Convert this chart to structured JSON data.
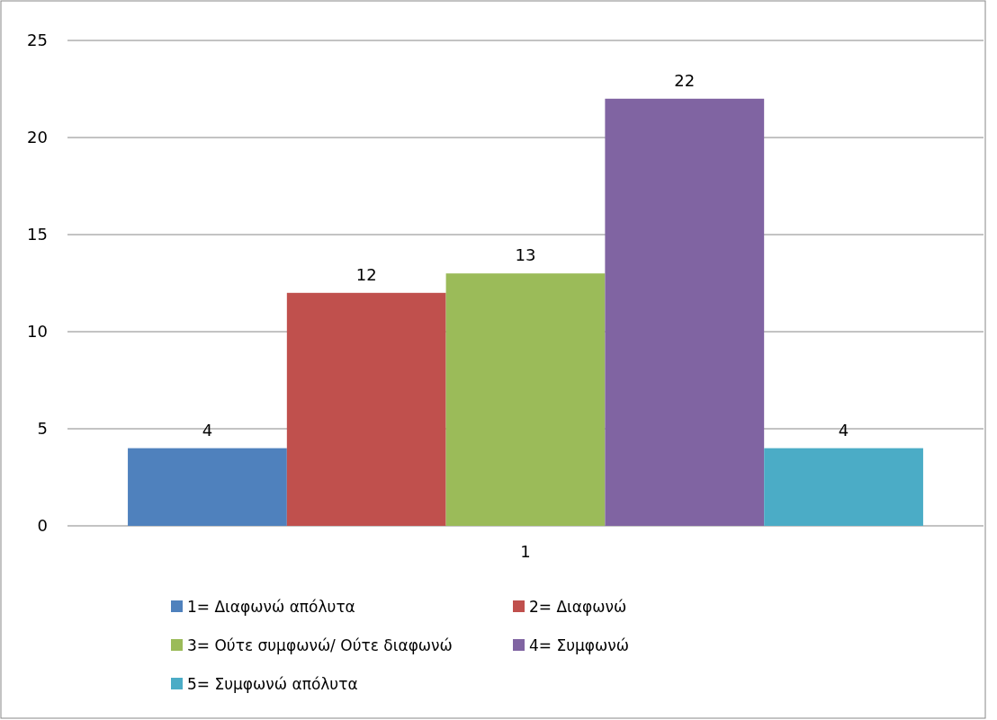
{
  "chart_data": {
    "type": "bar",
    "categories": [
      "1"
    ],
    "series": [
      {
        "name": "1= Διαφωνώ απόλυτα",
        "color": "#4f81bd",
        "values": [
          4
        ]
      },
      {
        "name": "2= Διαφωνώ",
        "color": "#c0504d",
        "values": [
          12
        ]
      },
      {
        "name": "3= Ούτε συμφωνώ/ Ούτε διαφωνώ",
        "color": "#9bbb59",
        "values": [
          13
        ]
      },
      {
        "name": "4= Συμφωνώ",
        "color": "#8064a2",
        "values": [
          22
        ]
      },
      {
        "name": "5= Συμφωνώ απόλυτα",
        "color": "#4bacc6",
        "values": [
          4
        ]
      }
    ],
    "ylim": [
      0,
      25
    ],
    "yticks": [
      0,
      5,
      10,
      15,
      20,
      25
    ],
    "grid": "y",
    "data_labels": true,
    "legend": "bottom"
  }
}
